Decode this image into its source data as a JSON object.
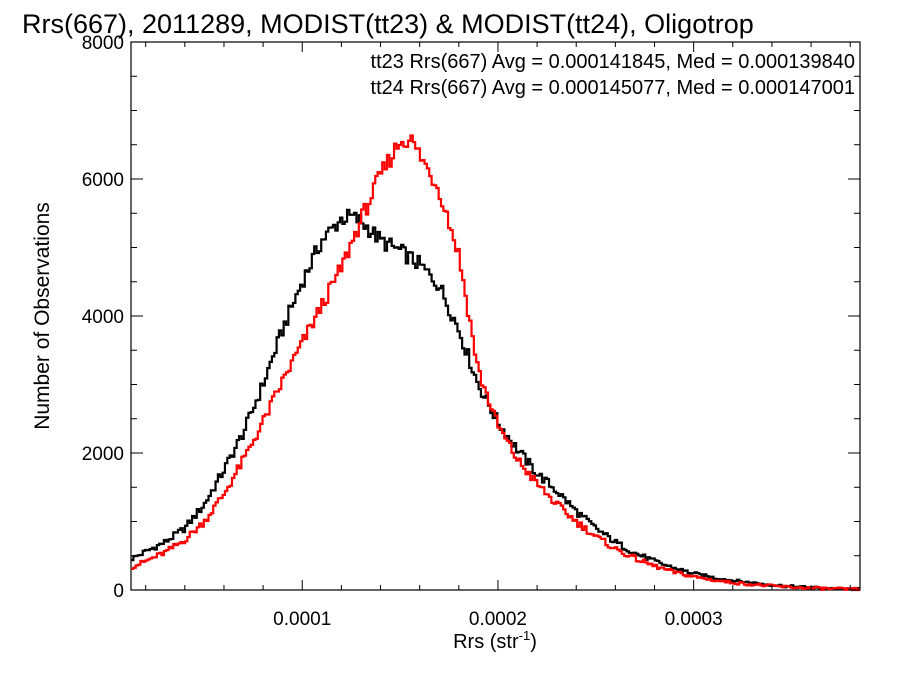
{
  "chart_data": {
    "type": "histogram-step",
    "title": "Rrs(667), 2011289, MODIST(tt23) & MODIST(tt24), Oligotrop",
    "xlabel": "Rrs (str",
    "xlabel_exponent": "-1",
    "xlabel_close": ")",
    "ylabel": "Number of Observations",
    "xlim": [
      1.25e-05,
      0.000385
    ],
    "ylim": [
      0,
      8000
    ],
    "x_ticks": [
      {
        "value": 0.0001,
        "label": "0.0001"
      },
      {
        "value": 0.0002,
        "label": "0.0002"
      },
      {
        "value": 0.0003,
        "label": "0.0003"
      }
    ],
    "y_ticks": [
      {
        "value": 0,
        "label": "0"
      },
      {
        "value": 2000,
        "label": "2000"
      },
      {
        "value": 4000,
        "label": "4000"
      },
      {
        "value": 6000,
        "label": "6000"
      },
      {
        "value": 8000,
        "label": "8000"
      }
    ],
    "grid": false,
    "legend_position": "top-right",
    "series": [
      {
        "name": "tt23",
        "color": "#000000",
        "legend_text": "tt23 Rrs(667) Avg = 0.000141845, Med = 0.000139840",
        "key_points": [
          [
            1.25e-05,
            450
          ],
          [
            2e-05,
            560
          ],
          [
            3e-05,
            700
          ],
          [
            4e-05,
            900
          ],
          [
            5e-05,
            1250
          ],
          [
            6e-05,
            1750
          ],
          [
            7e-05,
            2300
          ],
          [
            8e-05,
            3000
          ],
          [
            9e-05,
            3800
          ],
          [
            0.0001,
            4500
          ],
          [
            0.00011,
            5100
          ],
          [
            0.00012,
            5420
          ],
          [
            0.000125,
            5450
          ],
          [
            0.00013,
            5380
          ],
          [
            0.000135,
            5250
          ],
          [
            0.00014,
            5100
          ],
          [
            0.00015,
            4950
          ],
          [
            0.00016,
            4750
          ],
          [
            0.00017,
            4450
          ],
          [
            0.00018,
            3800
          ],
          [
            0.00019,
            3000
          ],
          [
            0.0002,
            2450
          ],
          [
            0.00021,
            2050
          ],
          [
            0.00022,
            1700
          ],
          [
            0.00023,
            1450
          ],
          [
            0.00024,
            1150
          ],
          [
            0.00025,
            900
          ],
          [
            0.00026,
            700
          ],
          [
            0.00027,
            540
          ],
          [
            0.00028,
            420
          ],
          [
            0.00029,
            320
          ],
          [
            0.0003,
            240
          ],
          [
            0.00031,
            180
          ],
          [
            0.00032,
            140
          ],
          [
            0.00033,
            105
          ],
          [
            0.00034,
            75
          ],
          [
            0.00035,
            50
          ],
          [
            0.00036,
            35
          ],
          [
            0.00037,
            22
          ],
          [
            0.00038,
            12
          ],
          [
            0.000385,
            10
          ]
        ]
      },
      {
        "name": "tt24",
        "color": "#ff0000",
        "legend_text": "tt24 Rrs(667) Avg = 0.000145077, Med = 0.000147001",
        "key_points": [
          [
            1.25e-05,
            330
          ],
          [
            2e-05,
            420
          ],
          [
            3e-05,
            550
          ],
          [
            4e-05,
            730
          ],
          [
            5e-05,
            1000
          ],
          [
            6e-05,
            1400
          ],
          [
            7e-05,
            1900
          ],
          [
            8e-05,
            2450
          ],
          [
            9e-05,
            3050
          ],
          [
            0.0001,
            3600
          ],
          [
            0.00011,
            4150
          ],
          [
            0.00012,
            4700
          ],
          [
            0.00013,
            5400
          ],
          [
            0.00014,
            6050
          ],
          [
            0.00015,
            6550
          ],
          [
            0.000155,
            6600
          ],
          [
            0.00016,
            6350
          ],
          [
            0.00017,
            5850
          ],
          [
            0.00018,
            4900
          ],
          [
            0.00019,
            3200
          ],
          [
            0.0002,
            2400
          ],
          [
            0.00021,
            1900
          ],
          [
            0.00022,
            1550
          ],
          [
            0.00023,
            1250
          ],
          [
            0.00024,
            1000
          ],
          [
            0.00025,
            780
          ],
          [
            0.00026,
            600
          ],
          [
            0.00027,
            460
          ],
          [
            0.00028,
            350
          ],
          [
            0.00029,
            260
          ],
          [
            0.0003,
            195
          ],
          [
            0.00031,
            145
          ],
          [
            0.00032,
            108
          ],
          [
            0.00033,
            80
          ],
          [
            0.00034,
            58
          ],
          [
            0.00035,
            40
          ],
          [
            0.00036,
            28
          ],
          [
            0.00037,
            18
          ],
          [
            0.00038,
            10
          ],
          [
            0.000385,
            8
          ]
        ]
      }
    ]
  }
}
